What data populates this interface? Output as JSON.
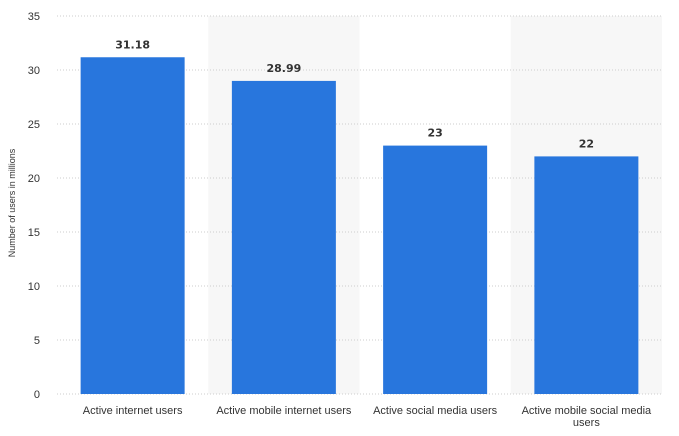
{
  "chart_data": {
    "type": "bar",
    "title": "",
    "xlabel": "",
    "ylabel": "Number of users in millions",
    "ylim": [
      0,
      35
    ],
    "yticks": [
      0,
      5,
      10,
      15,
      20,
      25,
      30,
      35
    ],
    "grid": true,
    "legend": "none",
    "categories": [
      [
        "Active internet users"
      ],
      [
        "Active mobile internet users"
      ],
      [
        "Active social media users"
      ],
      [
        "Active mobile social media",
        "users"
      ]
    ],
    "values": [
      31.18,
      28.99,
      23,
      22
    ],
    "value_labels": [
      "31.18",
      "28.99",
      "23",
      "22"
    ],
    "colors": {
      "bar": "#2876dd",
      "band": "#f7f7f7",
      "grid": "#cccccc",
      "text": "#333333"
    }
  }
}
